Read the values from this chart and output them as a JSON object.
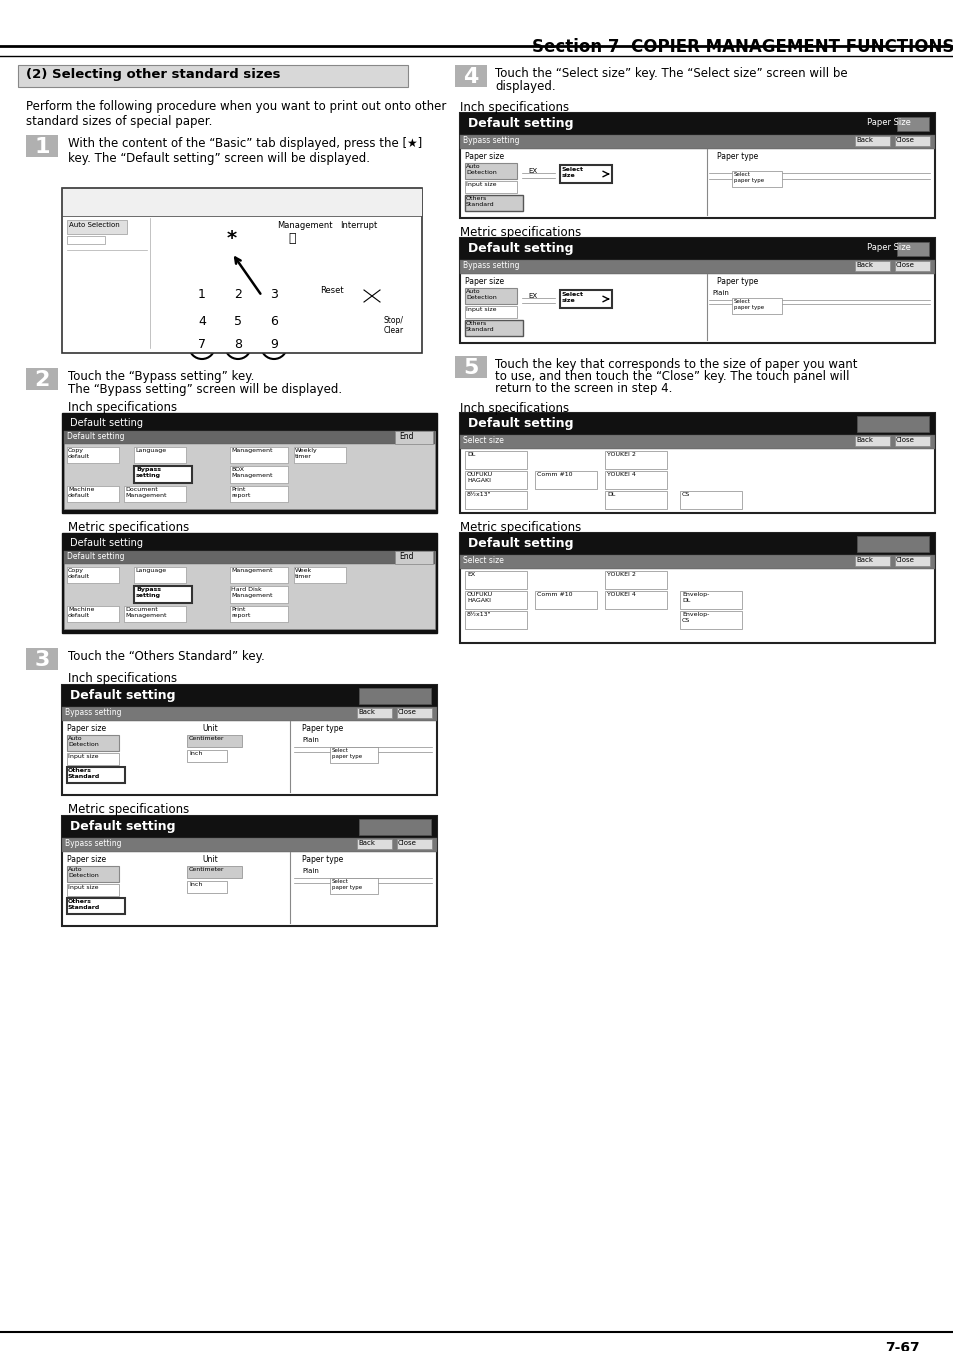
{
  "title": "Section 7  COPIER MANAGEMENT FUNCTIONS",
  "subtitle": "(2) Selecting other standard sizes",
  "intro": "Perform the following procedure when you want to print out onto other\nstandard sizes of special paper.",
  "s1": "With the content of the “Basic” tab displayed, press the [★]\nkey. The “Default setting” screen will be displayed.",
  "s2a": "Touch the “Bypass setting” key.",
  "s2b": "The “Bypass setting” screen will be displayed.",
  "s3": "Touch the “Others Standard” key.",
  "s4a": "Touch the “Select size” key. The “Select size” screen will be",
  "s4b": "displayed.",
  "s5a": "Touch the key that corresponds to the size of paper you want",
  "s5b": "to use, and then touch the “Close” key. The touch panel will",
  "s5c": "return to the screen in step 4.",
  "inch": "Inch specifications",
  "metric": "Metric specifications",
  "page": "7-67"
}
